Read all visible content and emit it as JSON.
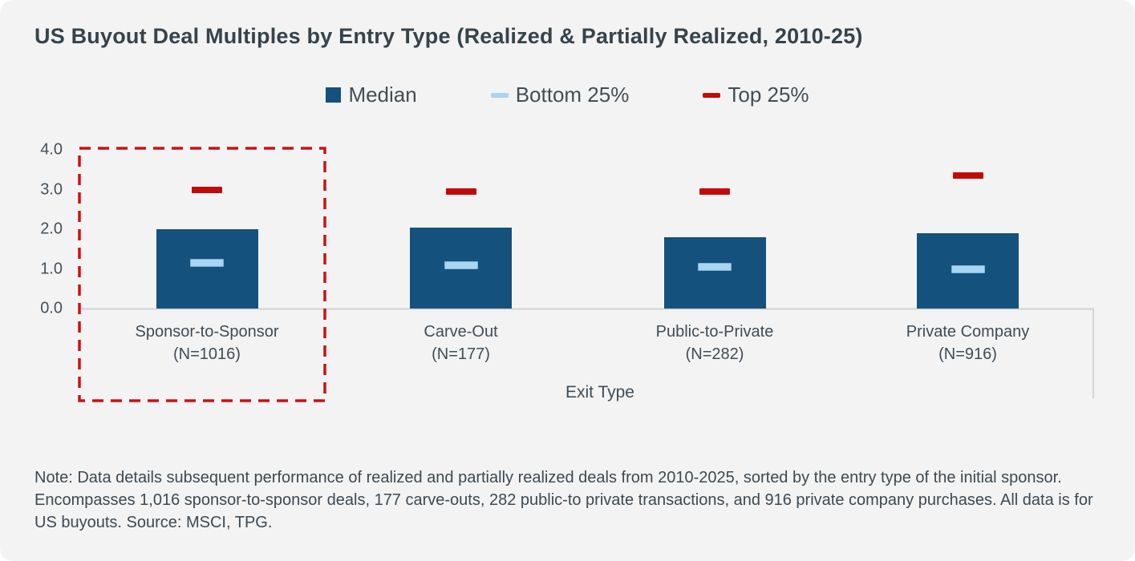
{
  "title": "US Buyout Deal Multiples by Entry Type (Realized & Partially Realized, 2010-25)",
  "legend": {
    "items": [
      {
        "label": "Median",
        "marker": "square",
        "color": "#14517d"
      },
      {
        "label": "Bottom 25%",
        "marker": "dash",
        "color": "#a8d5f2"
      },
      {
        "label": "Top 25%",
        "marker": "dash",
        "color": "#c10b0b"
      }
    ]
  },
  "xaxis_title": "Exit Type",
  "footnote": "Note: Data details subsequent performance of realized and partially realized deals from 2010-2025, sorted by the entry type of the initial sponsor. Encompasses 1,016 sponsor-to-sponsor deals, 177 carve-outs, 282 public-to private transactions, and 916 private company purchases. All data is for US buyouts. Source: MSCI, TPG.",
  "colors": {
    "background": "#f3f3f4",
    "bar": "#14517d",
    "bottom25_fill": "#a8d5f2",
    "bottom25_border": "#7fb2d5",
    "top25": "#c10b0b",
    "highlight_box": "#cc1111",
    "axis_line": "#d2d3d5",
    "text": "#3f4c55",
    "title_text": "#36434b"
  },
  "chart_data": {
    "type": "bar",
    "title": "US Buyout Deal Multiples by Entry Type (Realized & Partially Realized, 2010-25)",
    "xlabel": "Exit Type",
    "ylabel": "",
    "ylim": [
      0,
      4
    ],
    "yticks": [
      0.0,
      1.0,
      2.0,
      3.0,
      4.0
    ],
    "ytick_labels": [
      "0.0",
      "1.0",
      "2.0",
      "3.0",
      "4.0"
    ],
    "grid": false,
    "legend_position": "top-center",
    "categories": [
      "Sponsor-to-Sponsor",
      "Carve-Out",
      "Public-to-Private",
      "Private Company"
    ],
    "category_sublabels": [
      "(N=1016)",
      "(N=177)",
      "(N=282)",
      "(N=916)"
    ],
    "n_values": [
      1016,
      177,
      282,
      916
    ],
    "series": [
      {
        "name": "Median",
        "style": "bar",
        "values": [
          2.0,
          2.05,
          1.8,
          1.9
        ]
      },
      {
        "name": "Bottom 25%",
        "style": "dash",
        "values": [
          1.15,
          1.1,
          1.05,
          1.0
        ]
      },
      {
        "name": "Top 25%",
        "style": "dash",
        "values": [
          3.0,
          2.95,
          2.95,
          3.35
        ]
      }
    ],
    "annotations": [
      {
        "type": "highlight-box",
        "category": "Sponsor-to-Sponsor",
        "style": "red-dashed"
      }
    ]
  }
}
